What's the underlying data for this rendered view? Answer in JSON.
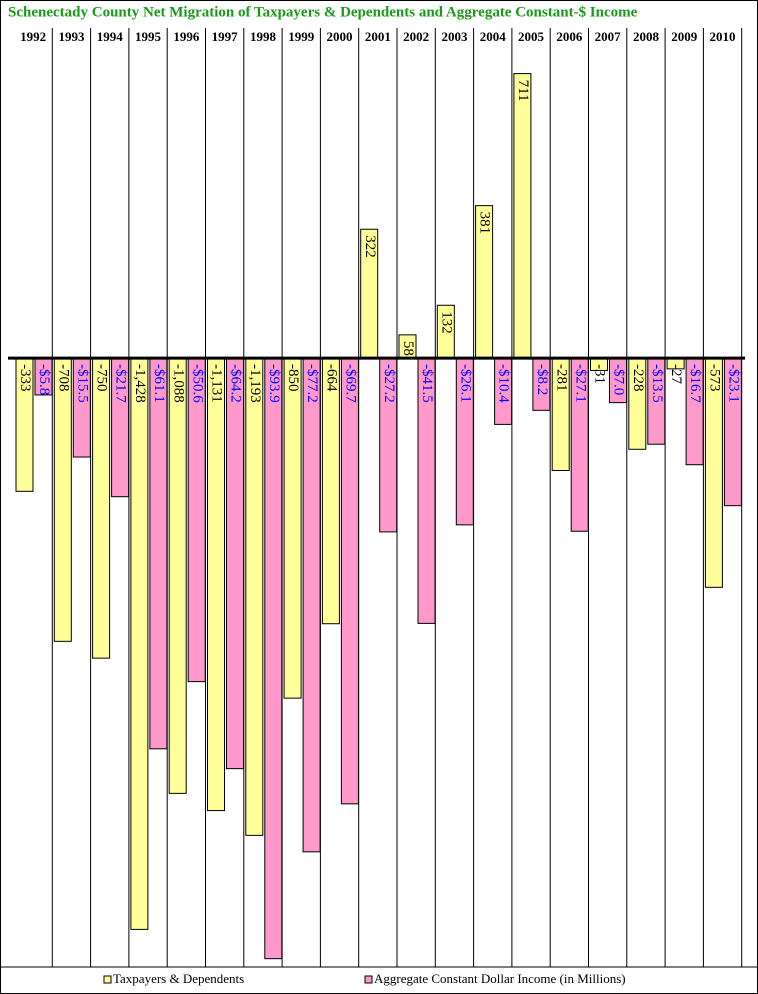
{
  "chart_data": {
    "type": "bar",
    "title": "Schenectady County  Net Migration of Taxpayers & Dependents and Aggregate Constant-$  Income",
    "categories": [
      "1992",
      "1993",
      "1994",
      "1995",
      "1996",
      "1997",
      "1998",
      "1999",
      "2000",
      "2001",
      "2002",
      "2003",
      "2004",
      "2005",
      "2006",
      "2007",
      "2008",
      "2009",
      "2010"
    ],
    "series": [
      {
        "name": "Taxpayers & Dependents",
        "color": "#ffff99",
        "values": [
          -333,
          -708,
          -750,
          -1428,
          -1088,
          -1131,
          -1193,
          -850,
          -664,
          322,
          58,
          132,
          381,
          711,
          -281,
          -31,
          -228,
          -27,
          -573
        ],
        "value_labels": [
          "-333",
          "-708",
          "-750",
          "-1,428",
          "-1,088",
          "-1,131",
          "-1,193",
          "-850",
          "-664",
          "322",
          "58",
          "132",
          "381",
          "711",
          "-281",
          "-31",
          "-228",
          "-27",
          "-573"
        ]
      },
      {
        "name": "Aggregate Constant Dollar Income (in Millions)",
        "color": "#ff99cc",
        "axis": "y2",
        "values": [
          -5.8,
          -15.5,
          -21.7,
          -61.1,
          -50.6,
          -64.2,
          -93.9,
          -77.2,
          -69.7,
          -27.2,
          -41.5,
          -26.1,
          -10.4,
          -8.2,
          -27.1,
          -7.0,
          -13.5,
          -16.7,
          -23.1
        ],
        "value_labels": [
          "-$5.8",
          "-$15.5",
          "-$21.7",
          "-$61.1",
          "-$50.6",
          "-$64.2",
          "-$93.9",
          "-$77.2",
          "-$69.7",
          "-$27.2",
          "-$41.5",
          "-$26.1",
          "-$10.4",
          "-$8.2",
          "-$27.1",
          "-$7.0",
          "-$13.5",
          "-$16.7",
          "-$23.1"
        ]
      }
    ],
    "ylim": [
      -1522,
      765
    ],
    "y2lim": [
      -95.2,
      47.8
    ],
    "legend": "bottom"
  }
}
